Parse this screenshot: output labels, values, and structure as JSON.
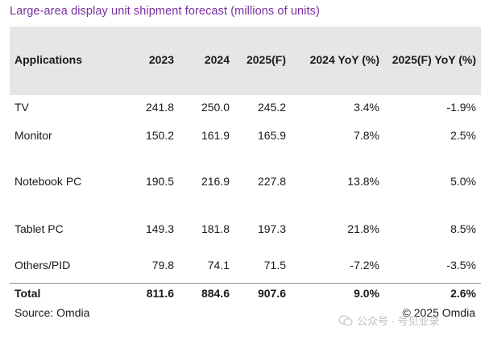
{
  "title": "Large-area display unit shipment forecast (millions of units)",
  "columns": [
    "Applications",
    "2023",
    "2024",
    "2025(F)",
    "2024 YoY (%)",
    "2025(F) YoY (%)"
  ],
  "rows": [
    [
      "TV",
      "241.8",
      "250.0",
      "245.2",
      "3.4%",
      "-1.9%"
    ],
    [
      "Monitor",
      "150.2",
      "161.9",
      "165.9",
      "7.8%",
      "2.5%"
    ],
    [
      "Notebook PC",
      "190.5",
      "216.9",
      "227.8",
      "13.8%",
      "5.0%"
    ],
    [
      "Tablet PC",
      "149.3",
      "181.8",
      "197.3",
      "21.8%",
      "8.5%"
    ],
    [
      "Others/PID",
      "79.8",
      "74.1",
      "71.5",
      "-7.2%",
      "-3.5%"
    ]
  ],
  "total": [
    "Total",
    "811.6",
    "884.6",
    "907.6",
    "9.0%",
    "2.6%"
  ],
  "source": "Source: Omdia",
  "copyright": "© 2025 Omdia",
  "watermark": "公众号 · 号见业录",
  "colors": {
    "title": "#7a2fa0",
    "header_bg": "#e6e6e6"
  }
}
